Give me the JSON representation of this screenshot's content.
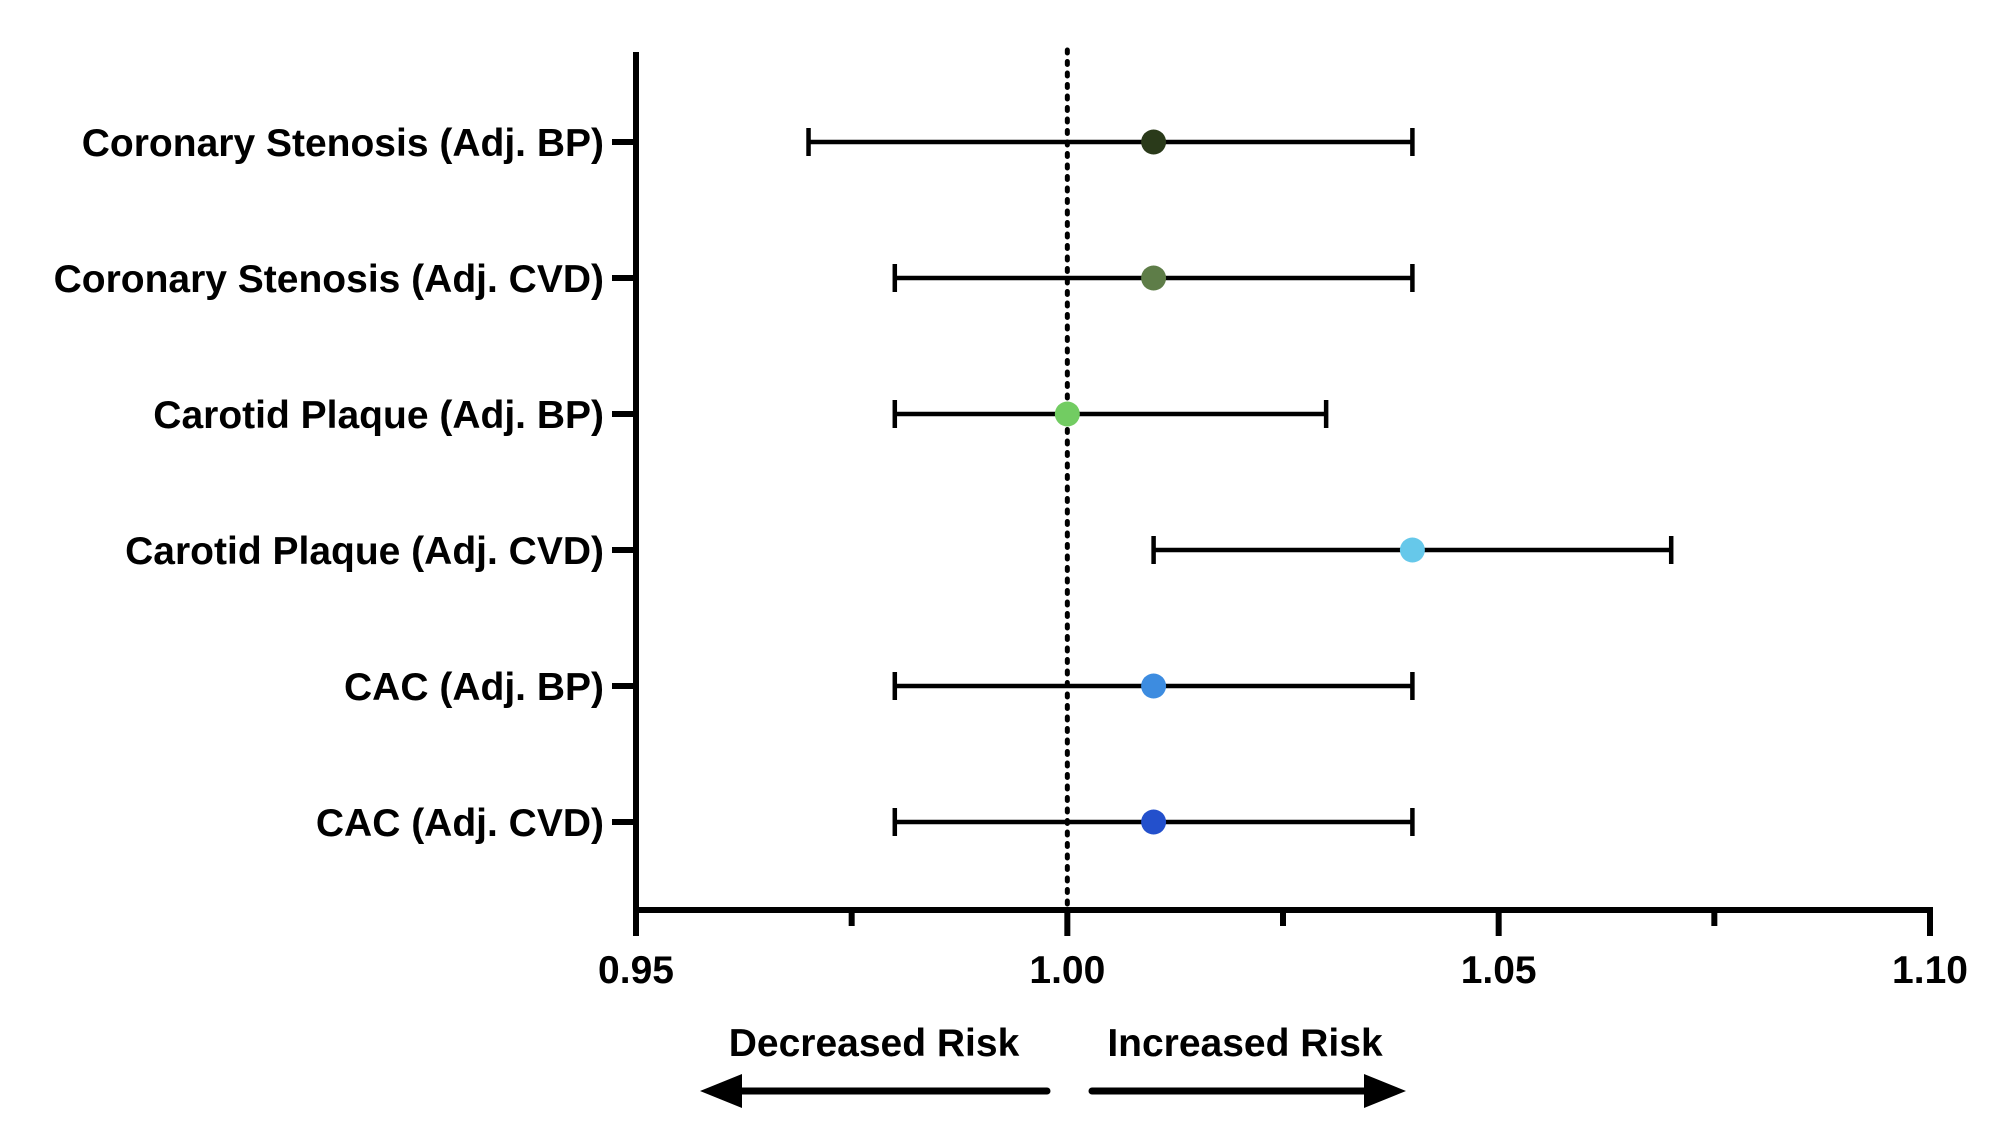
{
  "chart_data": {
    "type": "scatter",
    "subtype": "forest-plot",
    "title": "",
    "xlabel": "",
    "ylabel": "",
    "xlim": [
      0.95,
      1.1
    ],
    "reference_line": {
      "x": 1.0,
      "style": "dotted"
    },
    "xticks": [
      0.95,
      1.0,
      1.05,
      1.1
    ],
    "xtick_labels": [
      "0.95",
      "1.00",
      "1.05",
      "1.10"
    ],
    "xminor_ticks": [
      0.975,
      1.025,
      1.075
    ],
    "grid": false,
    "series": [
      {
        "label": "Coronary Stenosis (Adj. BP)",
        "estimate": 1.01,
        "ci_low": 0.97,
        "ci_high": 1.04,
        "color": "#2a3a1a"
      },
      {
        "label": "Coronary Stenosis (Adj. CVD)",
        "estimate": 1.01,
        "ci_low": 0.98,
        "ci_high": 1.04,
        "color": "#5e7d48"
      },
      {
        "label": "Carotid Plaque (Adj. BP)",
        "estimate": 1.0,
        "ci_low": 0.98,
        "ci_high": 1.03,
        "color": "#72cc62"
      },
      {
        "label": "Carotid Plaque (Adj. CVD)",
        "estimate": 1.04,
        "ci_low": 1.01,
        "ci_high": 1.07,
        "color": "#66c8ea"
      },
      {
        "label": "CAC (Adj. BP)",
        "estimate": 1.01,
        "ci_low": 0.98,
        "ci_high": 1.04,
        "color": "#3d8ce0"
      },
      {
        "label": "CAC (Adj. CVD)",
        "estimate": 1.01,
        "ci_low": 0.98,
        "ci_high": 1.04,
        "color": "#2350cc"
      }
    ],
    "annotations": {
      "left_arrow_label": "Decreased Risk",
      "right_arrow_label": "Increased Risk"
    }
  }
}
